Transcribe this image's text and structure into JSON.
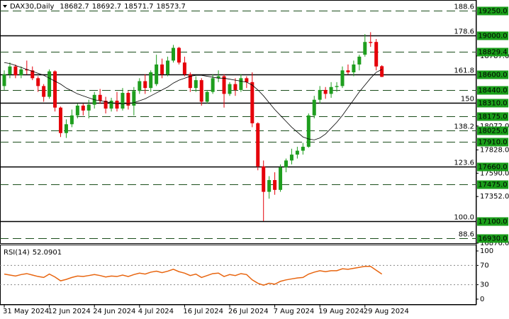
{
  "chart_data": {
    "type": "candlestick",
    "title": "DAX30,Daily",
    "categories": [
      "31 May 2024",
      null,
      null,
      null,
      null,
      null,
      null,
      null,
      "12 Jun 2024",
      null,
      null,
      null,
      null,
      null,
      null,
      null,
      "24 Jun 2024",
      null,
      null,
      null,
      null,
      null,
      null,
      null,
      "4 Jul 2024",
      null,
      null,
      null,
      null,
      null,
      null,
      null,
      "16 Jul 2024",
      null,
      null,
      null,
      null,
      null,
      null,
      null,
      "26 Jul 2024",
      null,
      null,
      null,
      null,
      null,
      null,
      null,
      "7 Aug 2024",
      null,
      null,
      null,
      null,
      null,
      null,
      null,
      "19 Aug 2024",
      null,
      null,
      null,
      null,
      null,
      null,
      null,
      "29 Aug 2024",
      null,
      null,
      null
    ],
    "open": [
      18480,
      18600,
      18680,
      18590,
      18650,
      18640,
      18560,
      18480,
      18370,
      18630,
      18260,
      18000,
      18090,
      18180,
      18280,
      18230,
      18290,
      18390,
      18330,
      18250,
      18330,
      18250,
      18410,
      18280,
      18430,
      18530,
      18460,
      18500,
      18700,
      18600,
      18740,
      18870,
      18720,
      18600,
      18460,
      18540,
      18320,
      18420,
      18560,
      18580,
      18400,
      18500,
      18440,
      18560,
      18520,
      18100,
      17660,
      17400,
      17520,
      17420,
      17650,
      17720,
      17780,
      17820,
      17860,
      18180,
      18340,
      18440,
      18400,
      18470,
      18480,
      18640,
      18620,
      18700,
      18800,
      18930,
      18930,
      18682.7
    ],
    "high": [
      18640,
      18720,
      18700,
      18680,
      18740,
      18680,
      18580,
      18500,
      18650,
      18640,
      18270,
      18140,
      18240,
      18300,
      18300,
      18340,
      18420,
      18450,
      18370,
      18360,
      18420,
      18460,
      18430,
      18470,
      18560,
      18600,
      18640,
      18800,
      18760,
      18780,
      18900,
      18880,
      18780,
      18620,
      18580,
      18560,
      18440,
      18600,
      18640,
      18600,
      18520,
      18560,
      18600,
      18580,
      18620,
      18110,
      17720,
      17560,
      17600,
      17680,
      17740,
      17840,
      17860,
      17900,
      18200,
      18380,
      18480,
      18470,
      18520,
      18520,
      18680,
      18700,
      18740,
      18800,
      19010,
      19030,
      18960,
      18692.7
    ],
    "low": [
      18440,
      18560,
      18560,
      18560,
      18600,
      18540,
      18420,
      18320,
      18350,
      18220,
      17960,
      17950,
      18060,
      18150,
      18180,
      18150,
      18250,
      18300,
      18200,
      18220,
      18220,
      18230,
      18240,
      18180,
      18400,
      18400,
      18420,
      18480,
      18560,
      18580,
      18720,
      18700,
      18580,
      18420,
      18420,
      18280,
      18300,
      18400,
      18520,
      18260,
      18380,
      18380,
      18420,
      18460,
      18060,
      17620,
      17100,
      17330,
      17370,
      17400,
      17600,
      17680,
      17740,
      17780,
      17850,
      18150,
      18300,
      18350,
      18360,
      18420,
      18460,
      18600,
      18580,
      18640,
      18780,
      18880,
      18640,
      18571.7
    ],
    "close": [
      18600,
      18680,
      18590,
      18650,
      18640,
      18560,
      18480,
      18370,
      18630,
      18260,
      18000,
      18090,
      18180,
      18280,
      18230,
      18290,
      18390,
      18330,
      18250,
      18330,
      18250,
      18410,
      18280,
      18430,
      18530,
      18460,
      18620,
      18700,
      18600,
      18740,
      18870,
      18720,
      18600,
      18460,
      18540,
      18320,
      18420,
      18560,
      18580,
      18400,
      18500,
      18440,
      18560,
      18520,
      18100,
      17660,
      17400,
      17520,
      17420,
      17650,
      17720,
      17780,
      17820,
      17860,
      18180,
      18340,
      18440,
      18400,
      18470,
      18480,
      18640,
      18620,
      18700,
      18780,
      18930,
      18920,
      18680,
      18573.7
    ],
    "up_color": "#1e9e1e",
    "down_color": "#e5000a",
    "ma": {
      "color": "#000000",
      "values": [
        18720,
        18710,
        18690,
        18670,
        18650,
        18630,
        18610,
        18590,
        18560,
        18530,
        18500,
        18460,
        18430,
        18400,
        18380,
        18360,
        18340,
        18330,
        18320,
        18310,
        18300,
        18300,
        18300,
        18310,
        18330,
        18350,
        18380,
        18410,
        18440,
        18470,
        18510,
        18540,
        18560,
        18580,
        18590,
        18590,
        18580,
        18570,
        18560,
        18560,
        18550,
        18540,
        18530,
        18520,
        18490,
        18440,
        18380,
        18310,
        18240,
        18180,
        18120,
        18060,
        18010,
        17960,
        17940,
        17930,
        17950,
        17990,
        18050,
        18110,
        18180,
        18260,
        18340,
        18420,
        18490,
        18560,
        18620,
        18650
      ]
    },
    "ylim": [
      16876,
      19344
    ],
    "yticks": [
      {
        "value": 18787,
        "label": "18787.0"
      },
      {
        "value": 18072,
        "label": "18072.0"
      },
      {
        "value": 17828,
        "label": "17828.0"
      },
      {
        "value": 17590,
        "label": "17590.0"
      },
      {
        "value": 17352,
        "label": "17352.0"
      },
      {
        "value": 16876,
        "label": "16876.0"
      }
    ],
    "levels": [
      {
        "value": 19250,
        "label": "19250.0",
        "style": "dashed",
        "fib": "188.6"
      },
      {
        "value": 19000,
        "label": "19000.0",
        "style": "solid",
        "fib": "178.6"
      },
      {
        "value": 18829.4,
        "label": "18829.4",
        "style": "dashed"
      },
      {
        "value": 18600,
        "label": "18600.0",
        "style": "solid",
        "fib": "161.8"
      },
      {
        "value": 18440,
        "label": "18440.0",
        "style": "dashed"
      },
      {
        "value": 18310,
        "label": "18310.0",
        "style": "solid",
        "fib": "150"
      },
      {
        "value": 18175,
        "label": "18175.0",
        "style": "dashed"
      },
      {
        "value": 18025,
        "label": "18025.0",
        "style": "dashed",
        "fib": "138.2"
      },
      {
        "value": 17910,
        "label": "17910.0",
        "style": "dashed"
      },
      {
        "value": 17660,
        "label": "17660.0",
        "style": "solid",
        "fib": "123.6"
      },
      {
        "value": 17475,
        "label": "17475.0",
        "style": "dashed"
      },
      {
        "value": 17100,
        "label": "17100.0",
        "style": "solid",
        "fib": "100.0"
      },
      {
        "value": 16930,
        "label": "16930.0",
        "style": "dashed",
        "fib": "88.6"
      }
    ],
    "level_color": "#1a9e1a",
    "rsi": {
      "label": "RSI(14)",
      "color": "#e8650f",
      "values": [
        52,
        50,
        48,
        51,
        53,
        50,
        47,
        45,
        52,
        46,
        38,
        41,
        45,
        48,
        47,
        49,
        51,
        49,
        46,
        48,
        47,
        50,
        47,
        51,
        54,
        52,
        56,
        58,
        55,
        58,
        62,
        57,
        54,
        49,
        52,
        45,
        49,
        53,
        54,
        47,
        51,
        49,
        53,
        51,
        40,
        33,
        29,
        33,
        31,
        37,
        40,
        42,
        44,
        45,
        52,
        56,
        59,
        57,
        59,
        59,
        63,
        62,
        64,
        66,
        68,
        68,
        60,
        52.0901
      ],
      "ylim": [
        0,
        100
      ],
      "yticks": [
        0,
        30,
        70,
        100
      ]
    }
  }
}
